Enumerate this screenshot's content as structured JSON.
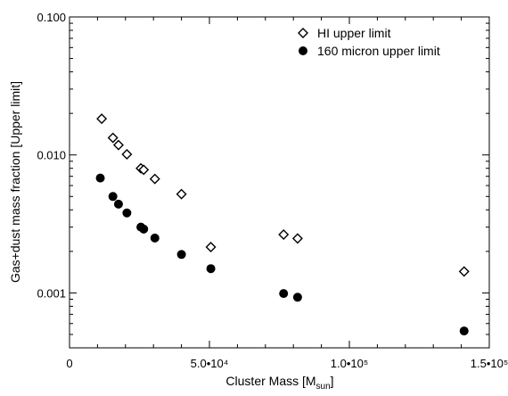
{
  "chart_data": {
    "type": "scatter",
    "xlabel": "Cluster Mass [M",
    "xlabel_sub": "sun",
    "xlabel_end": "]",
    "ylabel": "Gas+dust mass fraction [Upper limit]",
    "xlim": [
      0,
      150000
    ],
    "ylim": [
      0.0004,
      0.1
    ],
    "yscale": "log",
    "grid": false,
    "legend_position": "top-right",
    "x_ticks": [
      {
        "value": 0,
        "label": "0"
      },
      {
        "value": 50000,
        "label": "5.0•10⁴"
      },
      {
        "value": 100000,
        "label": "1.0•10⁵"
      },
      {
        "value": 150000,
        "label": "1.5•10⁵"
      }
    ],
    "y_ticks": [
      {
        "value": 0.001,
        "label": "0.001"
      },
      {
        "value": 0.01,
        "label": "0.010"
      },
      {
        "value": 0.1,
        "label": "0.100"
      }
    ],
    "series": [
      {
        "name": "HI upper limit",
        "marker": "open-diamond",
        "color": "#000000",
        "points": [
          {
            "x": 11500,
            "y": 0.0183
          },
          {
            "x": 15500,
            "y": 0.0133
          },
          {
            "x": 17500,
            "y": 0.0118
          },
          {
            "x": 20500,
            "y": 0.0101
          },
          {
            "x": 25500,
            "y": 0.008
          },
          {
            "x": 26500,
            "y": 0.0078
          },
          {
            "x": 30500,
            "y": 0.0067
          },
          {
            "x": 40000,
            "y": 0.0052
          },
          {
            "x": 50500,
            "y": 0.00215
          },
          {
            "x": 76500,
            "y": 0.00265
          },
          {
            "x": 81500,
            "y": 0.00248
          },
          {
            "x": 141000,
            "y": 0.00143
          }
        ]
      },
      {
        "name": "160 micron upper limit",
        "marker": "filled-circle",
        "color": "#000000",
        "points": [
          {
            "x": 11000,
            "y": 0.0068
          },
          {
            "x": 15500,
            "y": 0.005
          },
          {
            "x": 17500,
            "y": 0.0044
          },
          {
            "x": 20500,
            "y": 0.0038
          },
          {
            "x": 25500,
            "y": 0.003
          },
          {
            "x": 26500,
            "y": 0.0029
          },
          {
            "x": 30500,
            "y": 0.0025
          },
          {
            "x": 40000,
            "y": 0.0019
          },
          {
            "x": 50500,
            "y": 0.0015
          },
          {
            "x": 76500,
            "y": 0.00099
          },
          {
            "x": 81500,
            "y": 0.00093
          },
          {
            "x": 141000,
            "y": 0.00053
          }
        ]
      }
    ]
  }
}
